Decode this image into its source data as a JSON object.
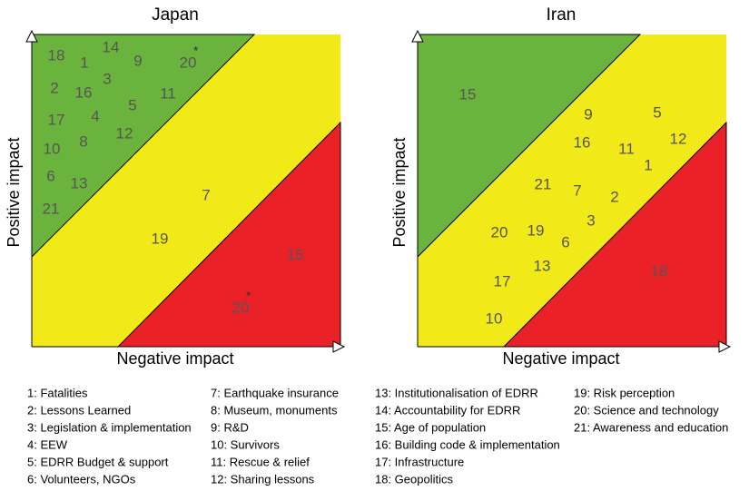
{
  "panels": [
    {
      "title": "Japan",
      "x_label": "Negative impact",
      "y_label": "Positive impact",
      "items": [
        {
          "text": "18"
        },
        {
          "text": "1"
        },
        {
          "text": "14"
        },
        {
          "text": "9"
        },
        {
          "text": "20",
          "note": "*"
        },
        {
          "text": "3"
        },
        {
          "text": "2"
        },
        {
          "text": "16"
        },
        {
          "text": "11"
        },
        {
          "text": "5"
        },
        {
          "text": "17"
        },
        {
          "text": "4"
        },
        {
          "text": "12"
        },
        {
          "text": "10"
        },
        {
          "text": "8"
        },
        {
          "text": "6"
        },
        {
          "text": "13"
        },
        {
          "text": "21"
        },
        {
          "text": "7"
        },
        {
          "text": "19"
        },
        {
          "text": "15"
        },
        {
          "text": "20",
          "note": "*"
        }
      ]
    },
    {
      "title": "Iran",
      "x_label": "Negative impact",
      "y_label": "Positive impact",
      "items": [
        {
          "text": "15"
        },
        {
          "text": "9"
        },
        {
          "text": "5"
        },
        {
          "text": "12"
        },
        {
          "text": "16"
        },
        {
          "text": "11"
        },
        {
          "text": "1"
        },
        {
          "text": "21"
        },
        {
          "text": "7"
        },
        {
          "text": "2"
        },
        {
          "text": "3"
        },
        {
          "text": "20"
        },
        {
          "text": "19"
        },
        {
          "text": "6"
        },
        {
          "text": "13"
        },
        {
          "text": "18"
        },
        {
          "text": "17"
        },
        {
          "text": "10"
        }
      ]
    }
  ],
  "legend": [
    "1: Fatalities",
    "2: Lessons Learned",
    "3: Legislation & implementation",
    "4: EEW",
    "5: EDRR Budget & support",
    "6: Volunteers, NGOs",
    "7: Earthquake insurance",
    "8: Museum, monuments",
    "9: R&D",
    "10: Survivors",
    "11: Rescue & relief",
    "12: Sharing lessons",
    "13: Institutionalisation of EDRR",
    "14: Accountability for EDRR",
    "15: Age of population",
    "16: Building code & implementation",
    "17: Infrastructure",
    "18: Geopolitics",
    "19: Risk perception",
    "20: Science and technology",
    "21: Awareness and education"
  ]
}
